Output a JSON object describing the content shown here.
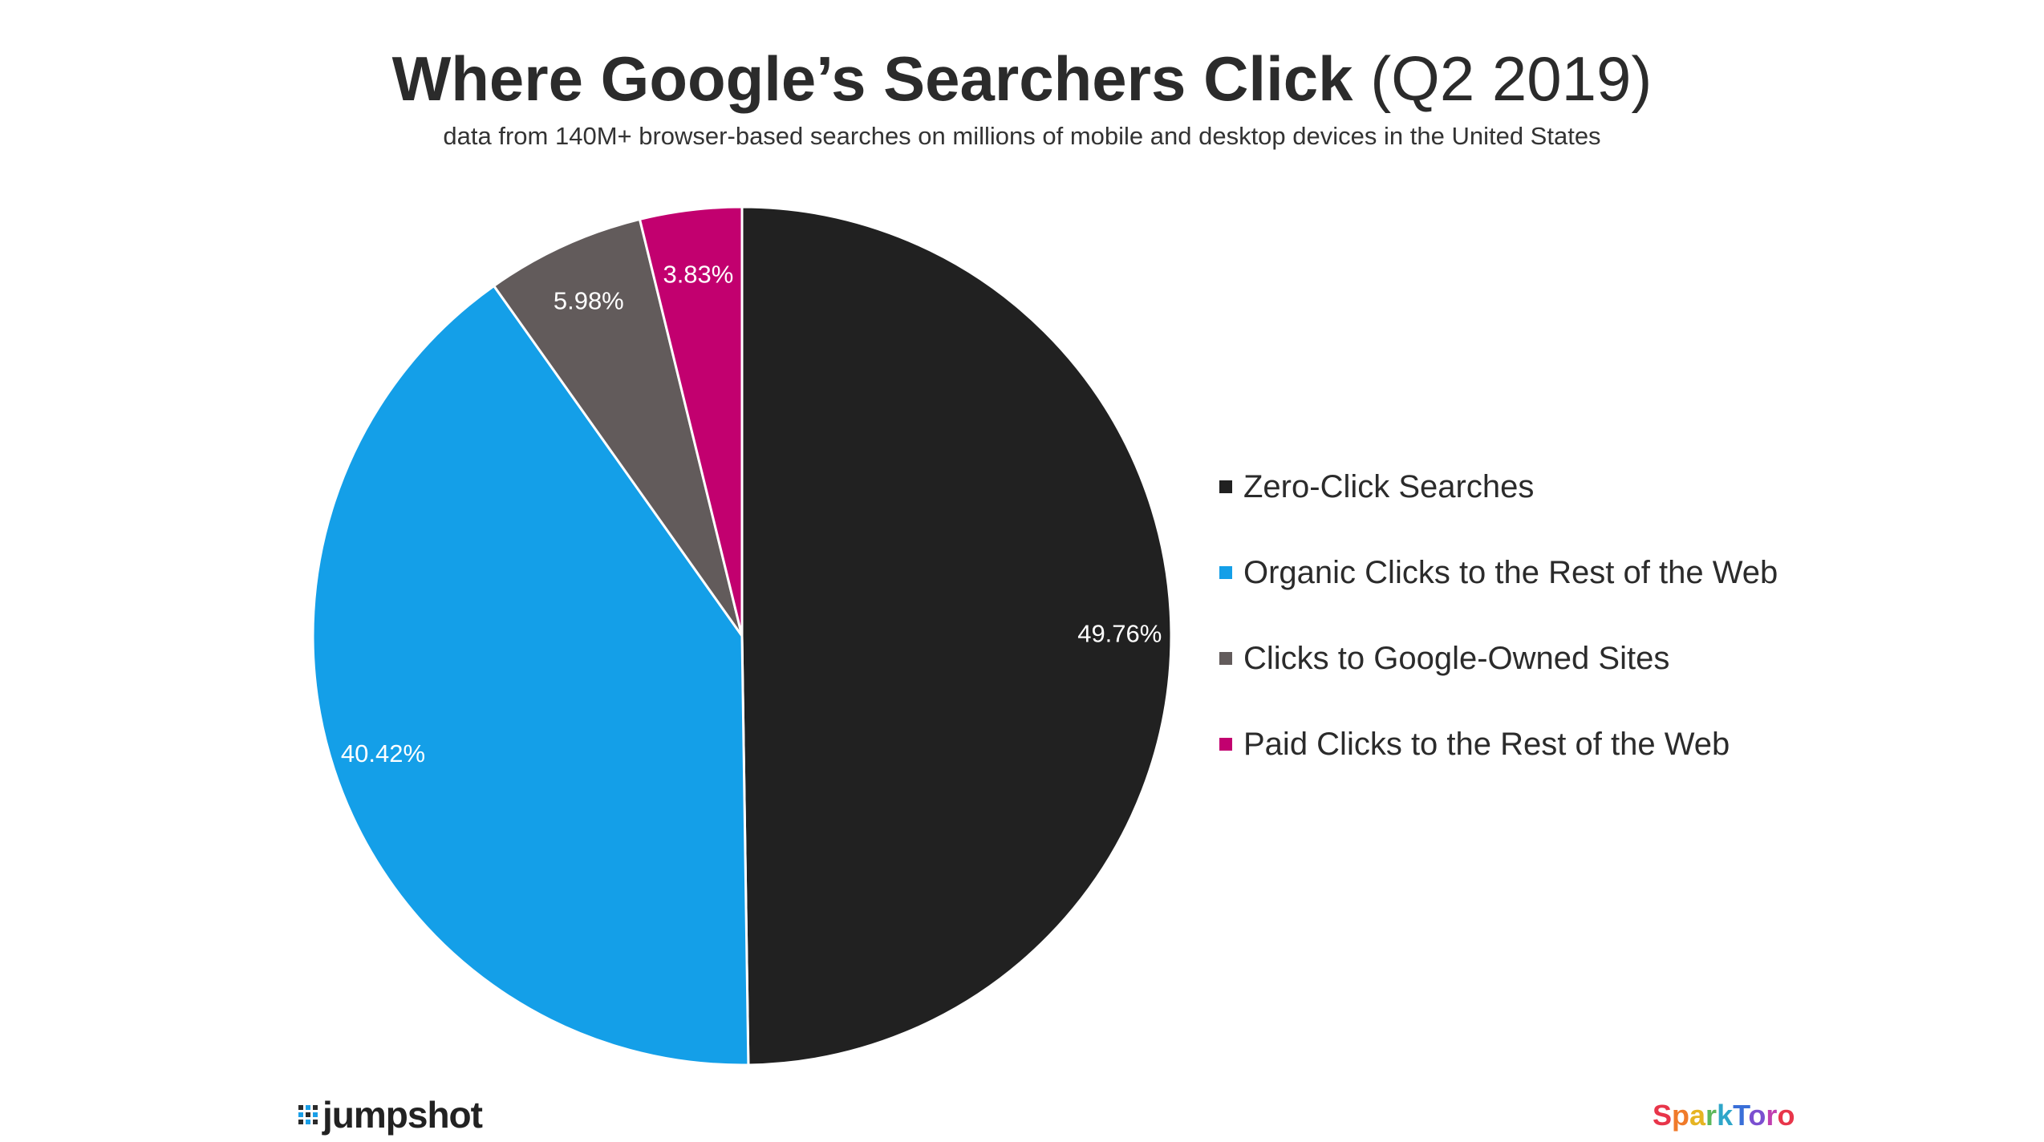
{
  "chart_data": {
    "type": "pie",
    "title": "Where Google’s Searchers Click",
    "title_suffix": "(Q2 2019)",
    "subtitle": "data from 140M+ browser-based searches on millions of mobile and desktop devices in the United States",
    "legend_position": "right",
    "slices": [
      {
        "label": "Zero-Click Searches",
        "value": 49.76,
        "display": "49.76%",
        "color": "#212121"
      },
      {
        "label": "Organic Clicks to the Rest of the Web",
        "value": 40.42,
        "display": "40.42%",
        "color": "#149fe8"
      },
      {
        "label": "Clicks to Google-Owned Sites",
        "value": 5.98,
        "display": "5.98%",
        "color": "#625b5b"
      },
      {
        "label": "Paid Clicks to the Rest of the Web",
        "value": 3.83,
        "display": "3.83%",
        "color": "#c2006f"
      }
    ]
  },
  "logos": {
    "left": "jumpshot",
    "right": "SparkToro"
  }
}
